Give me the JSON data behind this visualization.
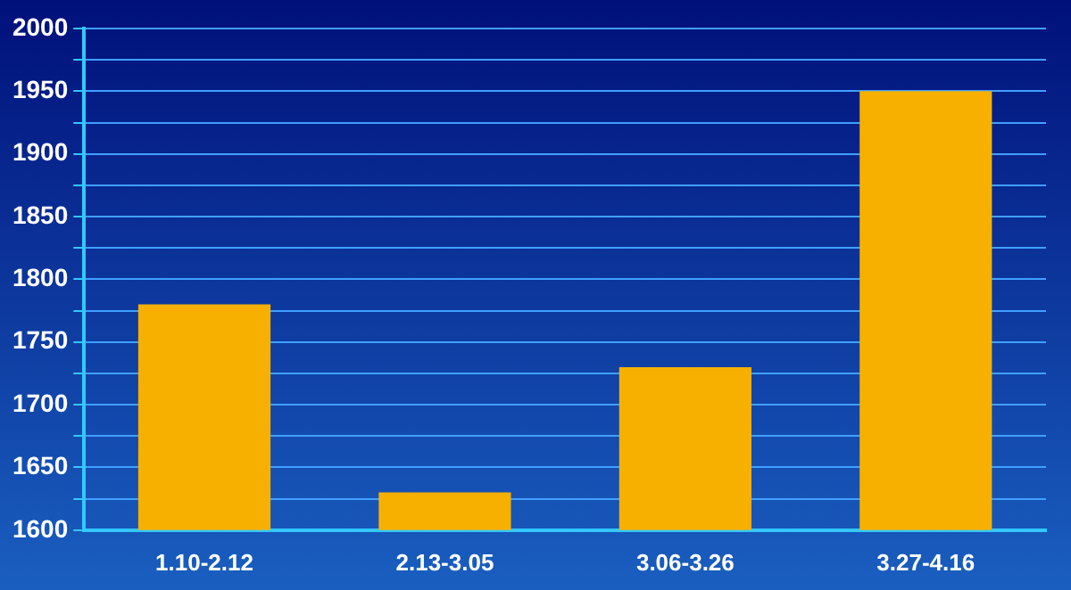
{
  "chart_data": {
    "type": "bar",
    "categories": [
      "1.10-2.12",
      "2.13-3.05",
      "3.06-3.26",
      "3.27-4.16"
    ],
    "values": [
      1780,
      1630,
      1730,
      1950
    ],
    "color": "#f7b000",
    "ylim": [
      1600,
      2000
    ],
    "yticks": [
      1600,
      {
        "value": 1625,
        "label": null
      },
      1650,
      {
        "value": 1675,
        "label": null
      },
      1700,
      {
        "value": 1725,
        "label": null
      },
      1750,
      {
        "value": 1775,
        "label": null
      },
      1800,
      {
        "value": 1825,
        "label": null
      },
      1850,
      {
        "value": 1875,
        "label": null
      },
      1900,
      {
        "value": 1925,
        "label": null
      },
      1950,
      {
        "value": 1975,
        "label": null
      },
      2000
    ],
    "grid": "y",
    "legend": false
  }
}
